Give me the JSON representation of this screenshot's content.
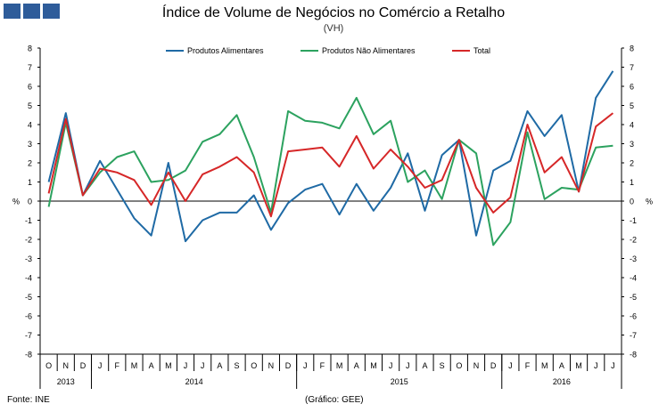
{
  "header": {
    "title": "Índice de Volume de Negócios no Comércio a Retalho",
    "subtitle": "(VH)"
  },
  "footer": {
    "source": "Fonte: INE",
    "credit": "(Gráfico: GEE)"
  },
  "chart_data": {
    "type": "line",
    "ylabel_left": "%",
    "ylabel_right": "%",
    "ylim": [
      -8,
      8
    ],
    "yticks": [
      -8,
      -7,
      -6,
      -5,
      -4,
      -3,
      -2,
      -1,
      0,
      1,
      2,
      3,
      4,
      5,
      6,
      7,
      8
    ],
    "grid": false,
    "legend_position": "top-center",
    "x": [
      "O",
      "N",
      "D",
      "J",
      "F",
      "M",
      "A",
      "M",
      "J",
      "J",
      "A",
      "S",
      "O",
      "N",
      "D",
      "J",
      "F",
      "M",
      "A",
      "M",
      "J",
      "J",
      "A",
      "S",
      "O",
      "N",
      "D",
      "J",
      "F",
      "M",
      "A",
      "M",
      "J",
      "J"
    ],
    "year_groups": [
      {
        "label": "2013",
        "count": 3
      },
      {
        "label": "2014",
        "count": 12
      },
      {
        "label": "2015",
        "count": 12
      },
      {
        "label": "2016",
        "count": 7
      }
    ],
    "series": [
      {
        "name": "Produtos Alimentares",
        "color": "#1f6aa5",
        "values": [
          1.0,
          4.6,
          0.3,
          2.1,
          0.6,
          -0.9,
          -1.8,
          2.0,
          -2.1,
          -1.0,
          -0.6,
          -0.6,
          0.3,
          -1.5,
          -0.1,
          0.6,
          0.9,
          -0.7,
          0.9,
          -0.5,
          0.7,
          2.5,
          -0.5,
          2.4,
          3.2,
          -1.8,
          1.6,
          2.1,
          4.7,
          3.4,
          4.5,
          0.5,
          5.4,
          6.8
        ]
      },
      {
        "name": "Produtos Não Alimentares",
        "color": "#2ca25f",
        "values": [
          -0.3,
          4.1,
          0.3,
          1.5,
          2.3,
          2.6,
          1.0,
          1.1,
          1.6,
          3.1,
          3.5,
          4.5,
          2.3,
          -0.6,
          4.7,
          4.2,
          4.1,
          3.8,
          5.4,
          3.5,
          4.2,
          1.0,
          1.6,
          0.1,
          3.2,
          2.5,
          -2.3,
          -1.1,
          3.6,
          0.1,
          0.7,
          0.6,
          2.8,
          2.9
        ]
      },
      {
        "name": "Total",
        "color": "#d62728",
        "values": [
          0.4,
          4.3,
          0.3,
          1.7,
          1.5,
          1.1,
          -0.2,
          1.5,
          0.0,
          1.4,
          1.8,
          2.3,
          1.5,
          -0.8,
          2.6,
          2.7,
          2.8,
          1.8,
          3.4,
          1.7,
          2.7,
          1.8,
          0.7,
          1.1,
          3.2,
          0.7,
          -0.6,
          0.2,
          4.0,
          1.5,
          2.3,
          0.5,
          3.9,
          4.6
        ]
      }
    ]
  }
}
